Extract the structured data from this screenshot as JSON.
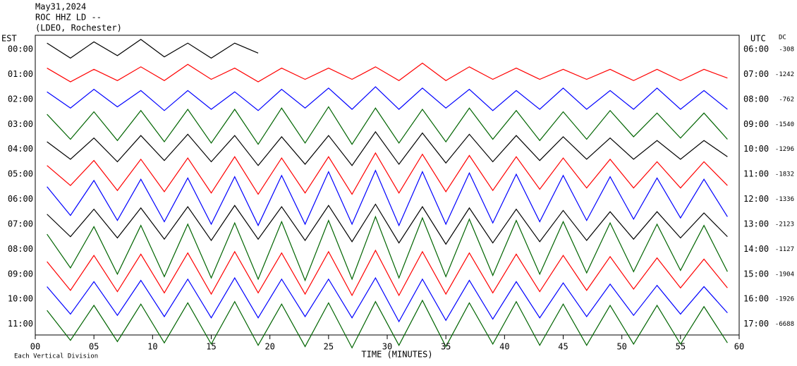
{
  "chart_data": {
    "type": "helicorder",
    "title": "May31,2024",
    "subtitle": "ROC HHZ LD --",
    "network": "(LDEO, Rochester)",
    "left_axis_label": "EST",
    "right_axis_label": "UTC",
    "dc_label": "DC",
    "xlabel": "TIME (MINUTES)",
    "footnote": "Each Vertical Division",
    "xlim": [
      0,
      60
    ],
    "xticks": [
      {
        "value": 0,
        "label": "00"
      },
      {
        "value": 5,
        "label": "05"
      },
      10,
      15,
      20,
      25,
      30,
      35,
      40,
      45,
      50,
      55,
      60
    ],
    "x": [
      1,
      3,
      5,
      7,
      9,
      11,
      13,
      15,
      17,
      19,
      21,
      23,
      25,
      27,
      29,
      31,
      33,
      35,
      37,
      39,
      41,
      43,
      45,
      47,
      49,
      51,
      53,
      55,
      57,
      59
    ],
    "series": [
      {
        "name": "00:00",
        "utc": "06:00",
        "dc": -308,
        "color": "#000000",
        "values": [
          0.5,
          0.7,
          0.6,
          0.5,
          0.8,
          0.6,
          0.5,
          0.7,
          0.5,
          0.3,
          null,
          null,
          null,
          null,
          null,
          null,
          null,
          null,
          null,
          null,
          null,
          null,
          null,
          null,
          null,
          null,
          null,
          null,
          null,
          null
        ]
      },
      {
        "name": "01:00",
        "utc": "07:00",
        "dc": -1242,
        "color": "#ff0000",
        "values": [
          0.5,
          0.6,
          0.4,
          0.5,
          0.6,
          0.5,
          0.8,
          0.4,
          0.5,
          0.6,
          0.5,
          0.4,
          0.5,
          0.4,
          0.6,
          0.5,
          0.9,
          0.5,
          0.6,
          0.4,
          0.5,
          0.4,
          0.4,
          0.4,
          0.4,
          0.5,
          0.4,
          0.5,
          0.4,
          0.3
        ]
      },
      {
        "name": "02:00",
        "utc": "08:00",
        "dc": -762,
        "color": "#0000ff",
        "values": [
          0.6,
          0.7,
          0.8,
          0.6,
          0.7,
          0.9,
          0.7,
          0.8,
          0.6,
          0.9,
          0.8,
          0.7,
          0.9,
          0.8,
          1.0,
          0.8,
          0.9,
          0.7,
          0.8,
          0.9,
          0.7,
          0.8,
          0.9,
          0.8,
          0.7,
          0.8,
          0.9,
          0.8,
          0.7,
          0.8
        ]
      },
      {
        "name": "03:00",
        "utc": "09:00",
        "dc": -1540,
        "color": "#006400",
        "values": [
          0.8,
          1.2,
          1.0,
          1.3,
          1.1,
          1.4,
          1.2,
          1.5,
          1.2,
          1.6,
          1.3,
          1.5,
          1.4,
          1.6,
          1.3,
          1.5,
          1.2,
          1.4,
          1.3,
          1.2,
          1.1,
          1.3,
          1.0,
          1.2,
          1.1,
          1.0,
          0.9,
          1.1,
          0.9,
          1.2
        ]
      },
      {
        "name": "04:00",
        "utc": "10:00",
        "dc": -1296,
        "color": "#000000",
        "values": [
          0.6,
          0.8,
          0.9,
          1.0,
          1.1,
          0.9,
          1.2,
          1.0,
          1.1,
          1.3,
          1.0,
          1.2,
          1.1,
          1.3,
          1.4,
          1.2,
          1.3,
          1.1,
          1.2,
          1.0,
          1.1,
          0.9,
          1.0,
          0.8,
          0.9,
          0.8,
          0.7,
          0.8,
          0.7,
          0.6
        ]
      },
      {
        "name": "05:00",
        "utc": "11:00",
        "dc": -1832,
        "color": "#ff0000",
        "values": [
          0.7,
          0.9,
          1.1,
          1.3,
          1.2,
          1.4,
          1.3,
          1.5,
          1.4,
          1.6,
          1.3,
          1.5,
          1.4,
          1.6,
          1.7,
          1.5,
          1.6,
          1.4,
          1.5,
          1.3,
          1.4,
          1.2,
          1.3,
          1.1,
          1.2,
          1.1,
          1.0,
          1.1,
          1.0,
          0.9
        ]
      },
      {
        "name": "06:00",
        "utc": "12:00",
        "dc": -1336,
        "color": "#0000ff",
        "values": [
          1.0,
          1.3,
          1.5,
          1.7,
          1.6,
          1.8,
          1.7,
          2.0,
          1.8,
          2.1,
          1.9,
          2.0,
          2.2,
          2.0,
          2.3,
          2.1,
          2.2,
          2.0,
          2.1,
          1.9,
          2.0,
          1.8,
          1.9,
          1.7,
          1.8,
          1.6,
          1.7,
          1.5,
          1.6,
          1.4
        ]
      },
      {
        "name": "07:00",
        "utc": "13:00",
        "dc": -2123,
        "color": "#000000",
        "values": [
          0.8,
          1.0,
          1.2,
          1.1,
          1.3,
          1.2,
          1.4,
          1.3,
          1.5,
          1.2,
          1.4,
          1.3,
          1.5,
          1.4,
          1.6,
          1.5,
          1.4,
          1.6,
          1.3,
          1.5,
          1.2,
          1.4,
          1.1,
          1.3,
          1.0,
          1.2,
          1.0,
          1.1,
          0.9,
          1.0
        ]
      },
      {
        "name": "08:00",
        "utc": "14:00",
        "dc": -1127,
        "color": "#006400",
        "values": [
          1.2,
          1.5,
          1.8,
          2.0,
          1.9,
          2.2,
          2.0,
          2.3,
          2.1,
          2.4,
          2.2,
          2.5,
          2.3,
          2.4,
          2.6,
          2.3,
          2.5,
          2.2,
          2.4,
          2.1,
          2.3,
          2.0,
          2.2,
          1.9,
          2.1,
          1.8,
          2.0,
          1.7,
          1.9,
          1.8
        ]
      },
      {
        "name": "09:00",
        "utc": "15:00",
        "dc": -1904,
        "color": "#ff0000",
        "values": [
          1.0,
          1.3,
          1.5,
          1.4,
          1.6,
          1.5,
          1.7,
          1.6,
          1.8,
          1.5,
          1.7,
          1.6,
          1.8,
          1.7,
          1.9,
          1.7,
          1.8,
          1.6,
          1.7,
          1.5,
          1.6,
          1.4,
          1.5,
          1.3,
          1.4,
          1.2,
          1.3,
          1.1,
          1.2,
          1.1
        ]
      },
      {
        "name": "10:00",
        "utc": "16:00",
        "dc": -1926,
        "color": "#0000ff",
        "values": [
          1.0,
          1.2,
          1.4,
          1.3,
          1.5,
          1.4,
          1.6,
          1.5,
          1.7,
          1.5,
          1.6,
          1.4,
          1.6,
          1.5,
          1.7,
          1.8,
          1.6,
          1.7,
          1.5,
          1.6,
          1.4,
          1.5,
          1.3,
          1.4,
          1.2,
          1.3,
          1.1,
          1.2,
          1.0,
          1.1
        ]
      },
      {
        "name": "11:00",
        "utc": "17:00",
        "dc": -6688,
        "color": "#006400",
        "values": [
          1.1,
          1.3,
          1.5,
          1.4,
          1.6,
          1.5,
          1.7,
          1.6,
          1.8,
          1.7,
          1.6,
          1.8,
          1.7,
          1.9,
          1.8,
          1.7,
          1.9,
          1.8,
          1.7,
          1.6,
          1.8,
          1.7,
          1.6,
          1.7,
          1.5,
          1.6,
          1.5,
          1.6,
          1.4,
          1.5
        ]
      }
    ]
  }
}
